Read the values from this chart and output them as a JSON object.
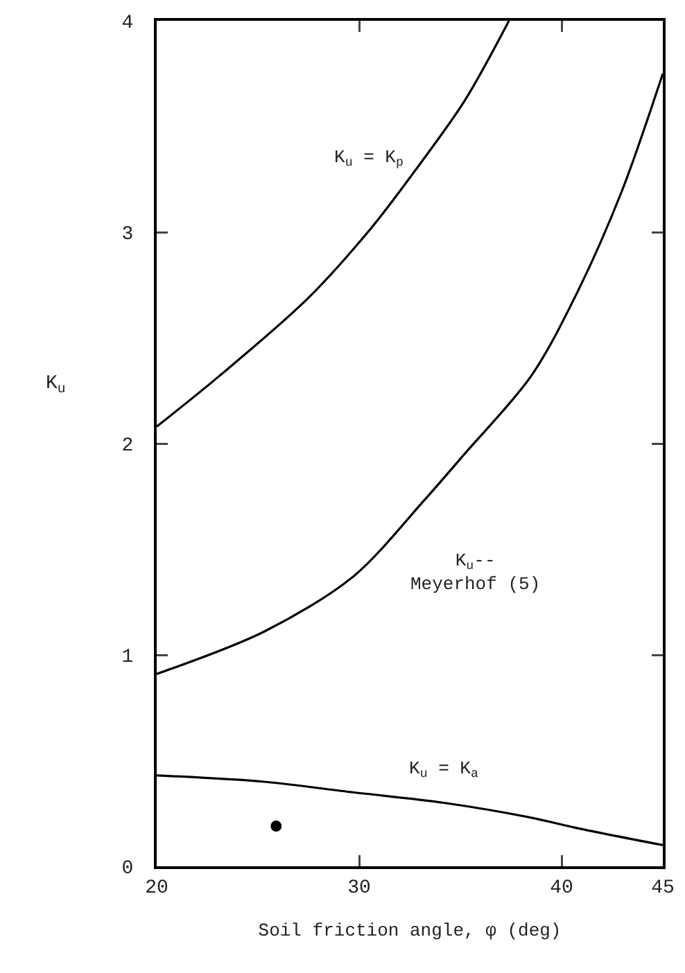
{
  "chart_data": {
    "type": "line",
    "xlabel": "Soil friction angle, φ (deg)",
    "ylabel": "K$_{u}$",
    "xlim": [
      20,
      45
    ],
    "xticks": [
      20,
      30,
      40,
      45
    ],
    "ylim": [
      0,
      4
    ],
    "yticks": [
      0,
      1,
      2,
      3,
      4
    ],
    "grid": false,
    "series": [
      {
        "name": "K$_{u}$ = K$_{p}$",
        "color": "#000000",
        "x": [
          20,
          23.1,
          27.5,
          30.6,
          32.6,
          35.2,
          37.4
        ],
        "values": [
          2.08,
          2.32,
          2.69,
          3.02,
          3.27,
          3.62,
          4.0
        ]
      },
      {
        "name": "K$_{u}$--\nMeyerhof (5)",
        "color": "#000000",
        "x": [
          20,
          25.3,
          29.7,
          33.2,
          35.2,
          38.5,
          40.8,
          43.0,
          45
        ],
        "values": [
          0.91,
          1.11,
          1.37,
          1.73,
          1.95,
          2.32,
          2.72,
          3.2,
          3.75
        ]
      },
      {
        "name": "K$_{u}$ = K$_{a}$",
        "color": "#000000",
        "x": [
          20,
          25.3,
          29.7,
          34.2,
          38.5,
          40.8,
          45
        ],
        "values": [
          0.43,
          0.4,
          0.35,
          0.3,
          0.23,
          0.18,
          0.1
        ]
      },
      {
        "type": "scatter",
        "marker": "circle",
        "color": "#000000",
        "x": [
          25.9
        ],
        "values": [
          0.19
        ]
      }
    ]
  }
}
